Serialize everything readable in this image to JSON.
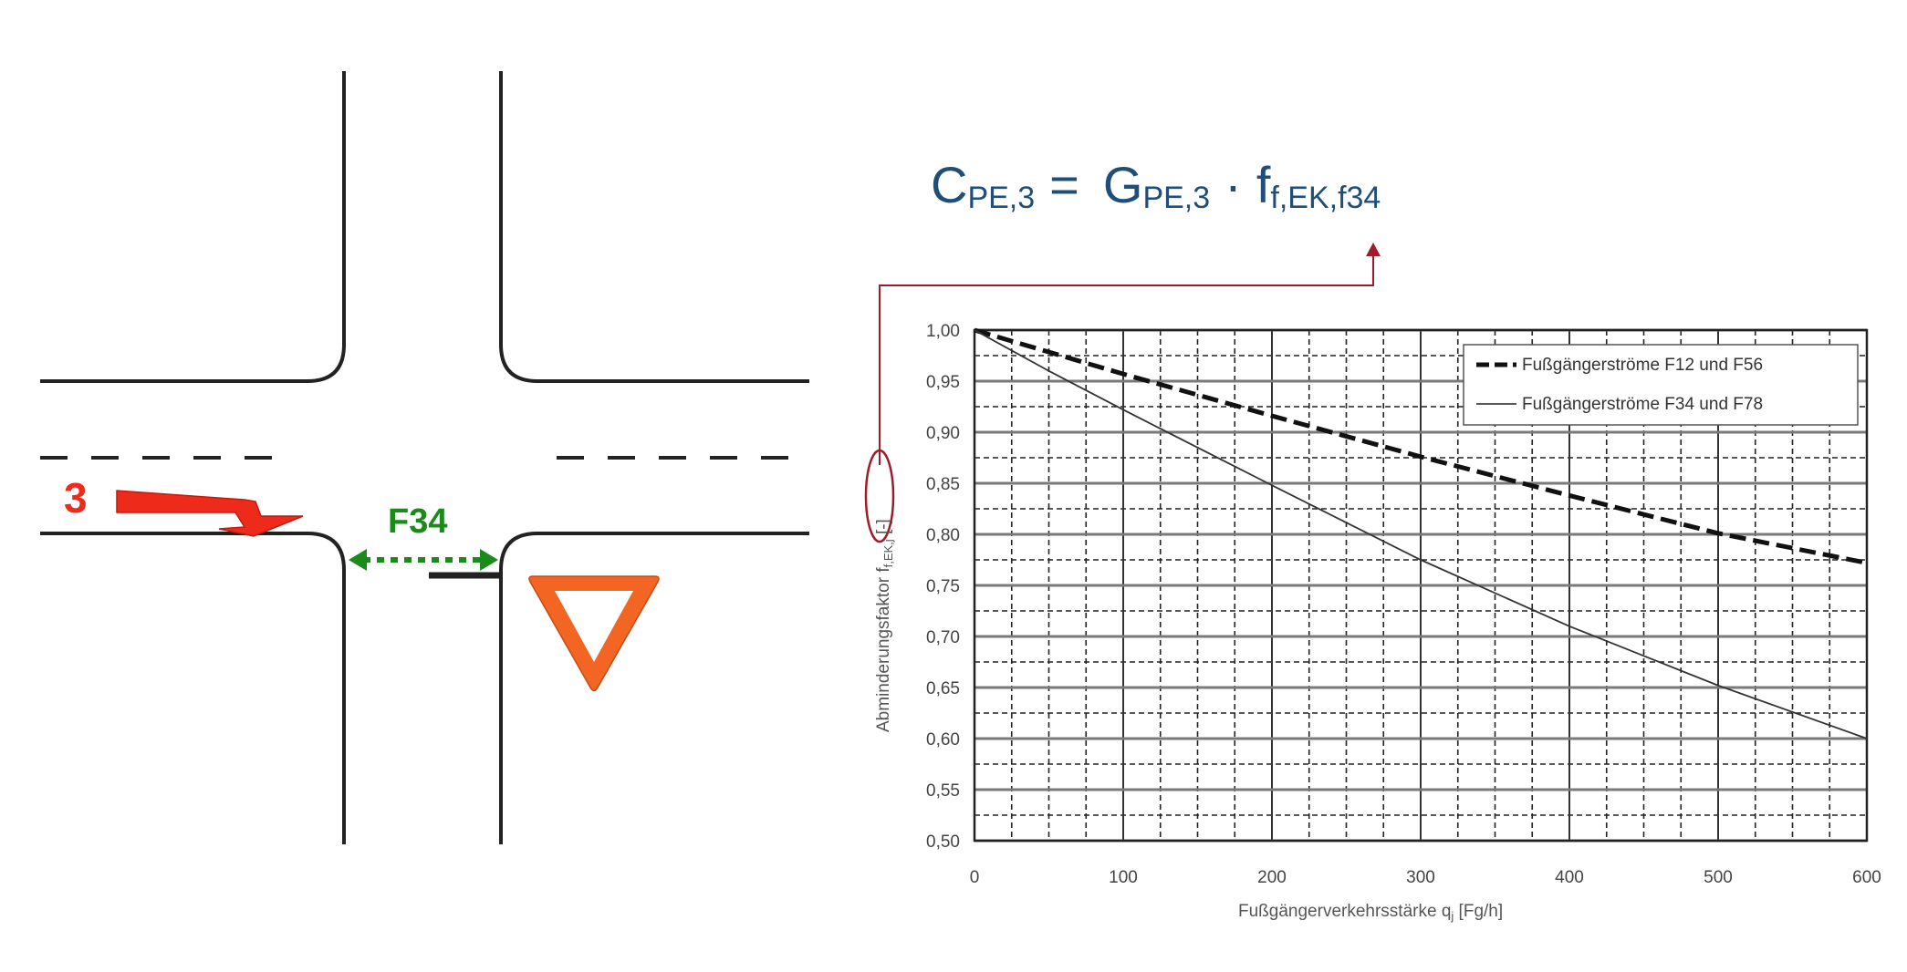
{
  "diagram": {
    "movement_number": "3",
    "pedestrian_flow_label": "F34",
    "colors": {
      "movement": "#ee2a1b",
      "pedestrian": "#1a8a1a",
      "yield_sign": "#f26522",
      "road": "#222222"
    },
    "icons": [
      "right-turn-arrow-icon",
      "yield-sign-icon",
      "double-arrow-icon"
    ]
  },
  "formula": {
    "c_base": "C",
    "c_sub": "PE,3",
    "eq": "=",
    "g_base": "G",
    "g_sub": "PE,3",
    "dot": "·",
    "f_base": "f",
    "f_sub": "f,EK,f34",
    "color": "#1f4e79",
    "pointer_color": "#a01c2a"
  },
  "chart_data": {
    "type": "line",
    "xlabel": "Fußgängerverkehrsstärke q",
    "xlabel_sub": "j",
    "xlabel_unit": " [Fg/h]",
    "ylabel_main": "Abminderungsfaktor f",
    "ylabel_sub": "f,EK,j",
    "ylabel_unit": " [-]",
    "xlim": [
      0,
      600
    ],
    "ylim": [
      0.5,
      1.0
    ],
    "xticks": [
      0,
      100,
      200,
      300,
      400,
      500,
      600
    ],
    "xtick_labels": [
      "0",
      "100",
      "200",
      "300",
      "400",
      "500",
      "600"
    ],
    "yticks": [
      0.5,
      0.55,
      0.6,
      0.65,
      0.7,
      0.75,
      0.8,
      0.85,
      0.9,
      0.95,
      1.0
    ],
    "ytick_labels": [
      "0,50",
      "0,55",
      "0,60",
      "0,65",
      "0,70",
      "0,75",
      "0,80",
      "0,85",
      "0,90",
      "0,95",
      "1,00"
    ],
    "grid": true,
    "legend_position": "top-right",
    "series": [
      {
        "name": "Fußgängerströme F12 und F56",
        "style": "dashed-bold",
        "x": [
          0,
          100,
          200,
          300,
          400,
          500,
          600
        ],
        "y": [
          1.0,
          0.957,
          0.916,
          0.876,
          0.838,
          0.801,
          0.772
        ]
      },
      {
        "name": "Fußgängerströme F34 und F78",
        "style": "solid-thin",
        "x": [
          0,
          50,
          100,
          150,
          200,
          300,
          400,
          500,
          600
        ],
        "y": [
          1.0,
          0.96,
          0.922,
          0.885,
          0.848,
          0.775,
          0.71,
          0.652,
          0.6
        ]
      }
    ]
  }
}
